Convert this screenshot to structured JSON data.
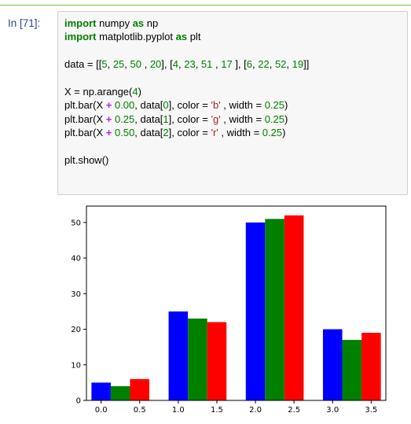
{
  "cell": {
    "prompt": "In [71]:",
    "code_lines": [
      {
        "parts": [
          [
            "kw",
            "import"
          ],
          [
            "t",
            " numpy "
          ],
          [
            "kw",
            "as"
          ],
          [
            "t",
            " np"
          ]
        ]
      },
      {
        "parts": [
          [
            "kw",
            "import"
          ],
          [
            "t",
            " matplotlib.pyplot "
          ],
          [
            "kw",
            "as"
          ],
          [
            "t",
            " plt"
          ]
        ]
      },
      {
        "blank": true
      },
      {
        "parts": [
          [
            "t",
            "data = [["
          ],
          [
            "num",
            "5"
          ],
          [
            "t",
            ", "
          ],
          [
            "num",
            "25"
          ],
          [
            "t",
            ", "
          ],
          [
            "num",
            "50"
          ],
          [
            "t",
            " , "
          ],
          [
            "num",
            "20"
          ],
          [
            "t",
            "], ["
          ],
          [
            "num",
            "4"
          ],
          [
            "t",
            ", "
          ],
          [
            "num",
            "23"
          ],
          [
            "t",
            ", "
          ],
          [
            "num",
            "51"
          ],
          [
            "t",
            " , "
          ],
          [
            "num",
            "17"
          ],
          [
            "t",
            " ], ["
          ],
          [
            "num",
            "6"
          ],
          [
            "t",
            ", "
          ],
          [
            "num",
            "22"
          ],
          [
            "t",
            ", "
          ],
          [
            "num",
            "52"
          ],
          [
            "t",
            ", "
          ],
          [
            "num",
            "19"
          ],
          [
            "t",
            "]]"
          ]
        ]
      },
      {
        "blank": true
      },
      {
        "parts": [
          [
            "t",
            "X = np.arange("
          ],
          [
            "num",
            "4"
          ],
          [
            "t",
            ")"
          ]
        ]
      },
      {
        "parts": [
          [
            "t",
            "plt.bar(X "
          ],
          [
            "op",
            "+"
          ],
          [
            "t",
            " "
          ],
          [
            "num",
            "0.00"
          ],
          [
            "t",
            ", data["
          ],
          [
            "num",
            "0"
          ],
          [
            "t",
            "], color = "
          ],
          [
            "str",
            "'b'"
          ],
          [
            "t",
            " , width = "
          ],
          [
            "num",
            "0.25"
          ],
          [
            "t",
            ")"
          ]
        ]
      },
      {
        "parts": [
          [
            "t",
            "plt.bar(X "
          ],
          [
            "op",
            "+"
          ],
          [
            "t",
            " "
          ],
          [
            "num",
            "0.25"
          ],
          [
            "t",
            ", data["
          ],
          [
            "num",
            "1"
          ],
          [
            "t",
            "], color = "
          ],
          [
            "str",
            "'g'"
          ],
          [
            "t",
            " , width = "
          ],
          [
            "num",
            "0.25"
          ],
          [
            "t",
            ")"
          ]
        ]
      },
      {
        "parts": [
          [
            "t",
            "plt.bar(X "
          ],
          [
            "op",
            "+"
          ],
          [
            "t",
            " "
          ],
          [
            "num",
            "0.50"
          ],
          [
            "t",
            ", data["
          ],
          [
            "num",
            "2"
          ],
          [
            "t",
            "], color = "
          ],
          [
            "str",
            "'r'"
          ],
          [
            "t",
            " , width = "
          ],
          [
            "num",
            "0.25"
          ],
          [
            "t",
            ")"
          ]
        ]
      },
      {
        "blank": true
      },
      {
        "parts": [
          [
            "t",
            "plt.show()"
          ]
        ]
      }
    ]
  },
  "colors": {
    "blue": "#0000ff",
    "green": "#008000",
    "red": "#ff0000"
  },
  "chart_data": {
    "type": "bar",
    "title": "",
    "xlabel": "",
    "ylabel": "",
    "xlim": [
      -0.19,
      3.69
    ],
    "ylim": [
      0,
      54.6
    ],
    "bar_width": 0.25,
    "xticks": [
      "0.0",
      "0.5",
      "1.0",
      "1.5",
      "2.0",
      "2.5",
      "3.0",
      "3.5"
    ],
    "xtick_values": [
      0.0,
      0.5,
      1.0,
      1.5,
      2.0,
      2.5,
      3.0,
      3.5
    ],
    "yticks": [
      "0",
      "10",
      "20",
      "30",
      "40",
      "50"
    ],
    "ytick_values": [
      0,
      10,
      20,
      30,
      40,
      50
    ],
    "series": [
      {
        "color": "b",
        "x": [
          0.0,
          1.0,
          2.0,
          3.0
        ],
        "values": [
          5,
          25,
          50,
          20
        ]
      },
      {
        "color": "g",
        "x": [
          0.25,
          1.25,
          2.25,
          3.25
        ],
        "values": [
          4,
          23,
          51,
          17
        ]
      },
      {
        "color": "r",
        "x": [
          0.5,
          1.5,
          2.5,
          3.5
        ],
        "values": [
          6,
          22,
          52,
          19
        ]
      }
    ]
  }
}
